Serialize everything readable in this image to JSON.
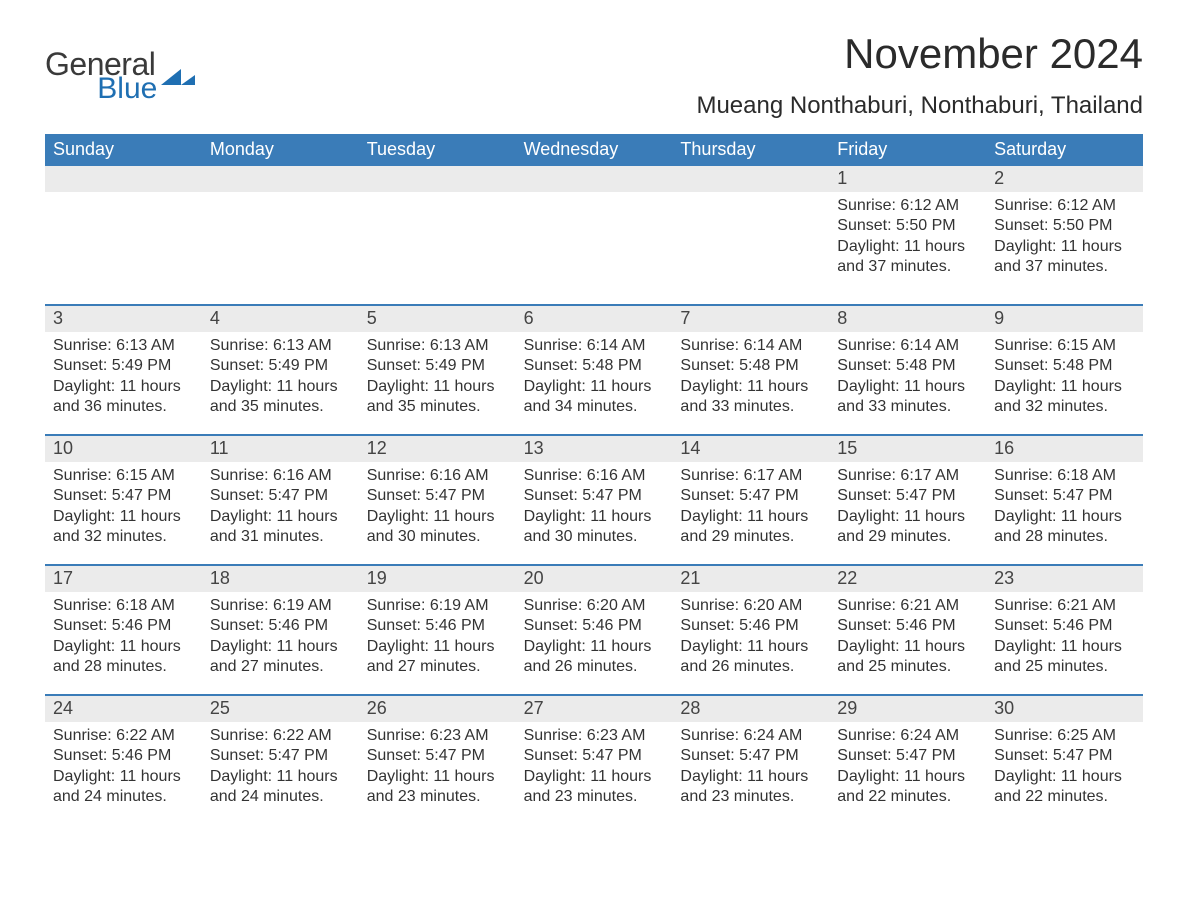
{
  "logo": {
    "general": "General",
    "blue": "Blue",
    "icon_color": "#1f6fb2"
  },
  "title": "November 2024",
  "location": "Mueang Nonthaburi, Nonthaburi, Thailand",
  "header_bg": "#3a7cb8",
  "daynum_bg": "#ebebeb",
  "divider_color": "#3a7cb8",
  "text_color": "#333333",
  "weekdays": [
    "Sunday",
    "Monday",
    "Tuesday",
    "Wednesday",
    "Thursday",
    "Friday",
    "Saturday"
  ],
  "weeks": [
    [
      {
        "day": "",
        "sunrise": "",
        "sunset": "",
        "daylight": ""
      },
      {
        "day": "",
        "sunrise": "",
        "sunset": "",
        "daylight": ""
      },
      {
        "day": "",
        "sunrise": "",
        "sunset": "",
        "daylight": ""
      },
      {
        "day": "",
        "sunrise": "",
        "sunset": "",
        "daylight": ""
      },
      {
        "day": "",
        "sunrise": "",
        "sunset": "",
        "daylight": ""
      },
      {
        "day": "1",
        "sunrise": "Sunrise: 6:12 AM",
        "sunset": "Sunset: 5:50 PM",
        "daylight": "Daylight: 11 hours and 37 minutes."
      },
      {
        "day": "2",
        "sunrise": "Sunrise: 6:12 AM",
        "sunset": "Sunset: 5:50 PM",
        "daylight": "Daylight: 11 hours and 37 minutes."
      }
    ],
    [
      {
        "day": "3",
        "sunrise": "Sunrise: 6:13 AM",
        "sunset": "Sunset: 5:49 PM",
        "daylight": "Daylight: 11 hours and 36 minutes."
      },
      {
        "day": "4",
        "sunrise": "Sunrise: 6:13 AM",
        "sunset": "Sunset: 5:49 PM",
        "daylight": "Daylight: 11 hours and 35 minutes."
      },
      {
        "day": "5",
        "sunrise": "Sunrise: 6:13 AM",
        "sunset": "Sunset: 5:49 PM",
        "daylight": "Daylight: 11 hours and 35 minutes."
      },
      {
        "day": "6",
        "sunrise": "Sunrise: 6:14 AM",
        "sunset": "Sunset: 5:48 PM",
        "daylight": "Daylight: 11 hours and 34 minutes."
      },
      {
        "day": "7",
        "sunrise": "Sunrise: 6:14 AM",
        "sunset": "Sunset: 5:48 PM",
        "daylight": "Daylight: 11 hours and 33 minutes."
      },
      {
        "day": "8",
        "sunrise": "Sunrise: 6:14 AM",
        "sunset": "Sunset: 5:48 PM",
        "daylight": "Daylight: 11 hours and 33 minutes."
      },
      {
        "day": "9",
        "sunrise": "Sunrise: 6:15 AM",
        "sunset": "Sunset: 5:48 PM",
        "daylight": "Daylight: 11 hours and 32 minutes."
      }
    ],
    [
      {
        "day": "10",
        "sunrise": "Sunrise: 6:15 AM",
        "sunset": "Sunset: 5:47 PM",
        "daylight": "Daylight: 11 hours and 32 minutes."
      },
      {
        "day": "11",
        "sunrise": "Sunrise: 6:16 AM",
        "sunset": "Sunset: 5:47 PM",
        "daylight": "Daylight: 11 hours and 31 minutes."
      },
      {
        "day": "12",
        "sunrise": "Sunrise: 6:16 AM",
        "sunset": "Sunset: 5:47 PM",
        "daylight": "Daylight: 11 hours and 30 minutes."
      },
      {
        "day": "13",
        "sunrise": "Sunrise: 6:16 AM",
        "sunset": "Sunset: 5:47 PM",
        "daylight": "Daylight: 11 hours and 30 minutes."
      },
      {
        "day": "14",
        "sunrise": "Sunrise: 6:17 AM",
        "sunset": "Sunset: 5:47 PM",
        "daylight": "Daylight: 11 hours and 29 minutes."
      },
      {
        "day": "15",
        "sunrise": "Sunrise: 6:17 AM",
        "sunset": "Sunset: 5:47 PM",
        "daylight": "Daylight: 11 hours and 29 minutes."
      },
      {
        "day": "16",
        "sunrise": "Sunrise: 6:18 AM",
        "sunset": "Sunset: 5:47 PM",
        "daylight": "Daylight: 11 hours and 28 minutes."
      }
    ],
    [
      {
        "day": "17",
        "sunrise": "Sunrise: 6:18 AM",
        "sunset": "Sunset: 5:46 PM",
        "daylight": "Daylight: 11 hours and 28 minutes."
      },
      {
        "day": "18",
        "sunrise": "Sunrise: 6:19 AM",
        "sunset": "Sunset: 5:46 PM",
        "daylight": "Daylight: 11 hours and 27 minutes."
      },
      {
        "day": "19",
        "sunrise": "Sunrise: 6:19 AM",
        "sunset": "Sunset: 5:46 PM",
        "daylight": "Daylight: 11 hours and 27 minutes."
      },
      {
        "day": "20",
        "sunrise": "Sunrise: 6:20 AM",
        "sunset": "Sunset: 5:46 PM",
        "daylight": "Daylight: 11 hours and 26 minutes."
      },
      {
        "day": "21",
        "sunrise": "Sunrise: 6:20 AM",
        "sunset": "Sunset: 5:46 PM",
        "daylight": "Daylight: 11 hours and 26 minutes."
      },
      {
        "day": "22",
        "sunrise": "Sunrise: 6:21 AM",
        "sunset": "Sunset: 5:46 PM",
        "daylight": "Daylight: 11 hours and 25 minutes."
      },
      {
        "day": "23",
        "sunrise": "Sunrise: 6:21 AM",
        "sunset": "Sunset: 5:46 PM",
        "daylight": "Daylight: 11 hours and 25 minutes."
      }
    ],
    [
      {
        "day": "24",
        "sunrise": "Sunrise: 6:22 AM",
        "sunset": "Sunset: 5:46 PM",
        "daylight": "Daylight: 11 hours and 24 minutes."
      },
      {
        "day": "25",
        "sunrise": "Sunrise: 6:22 AM",
        "sunset": "Sunset: 5:47 PM",
        "daylight": "Daylight: 11 hours and 24 minutes."
      },
      {
        "day": "26",
        "sunrise": "Sunrise: 6:23 AM",
        "sunset": "Sunset: 5:47 PM",
        "daylight": "Daylight: 11 hours and 23 minutes."
      },
      {
        "day": "27",
        "sunrise": "Sunrise: 6:23 AM",
        "sunset": "Sunset: 5:47 PM",
        "daylight": "Daylight: 11 hours and 23 minutes."
      },
      {
        "day": "28",
        "sunrise": "Sunrise: 6:24 AM",
        "sunset": "Sunset: 5:47 PM",
        "daylight": "Daylight: 11 hours and 23 minutes."
      },
      {
        "day": "29",
        "sunrise": "Sunrise: 6:24 AM",
        "sunset": "Sunset: 5:47 PM",
        "daylight": "Daylight: 11 hours and 22 minutes."
      },
      {
        "day": "30",
        "sunrise": "Sunrise: 6:25 AM",
        "sunset": "Sunset: 5:47 PM",
        "daylight": "Daylight: 11 hours and 22 minutes."
      }
    ]
  ]
}
